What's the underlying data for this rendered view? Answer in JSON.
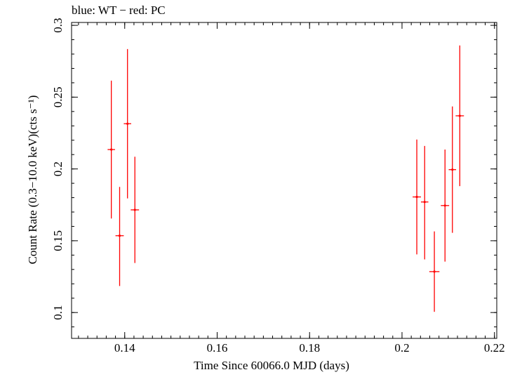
{
  "chart_data": {
    "type": "scatter",
    "title": "blue: WT − red: PC",
    "xlabel": "Time Since 60066.0 MJD (days)",
    "ylabel": "Count Rate (0.3−10.0 keV)(cts s⁻¹)",
    "xlim": [
      0.1285,
      0.2205
    ],
    "ylim": [
      0.082,
      0.302
    ],
    "x_ticks": [
      0.14,
      0.16,
      0.18,
      0.2,
      0.22
    ],
    "x_tick_labels": [
      "0.14",
      "0.16",
      "0.18",
      "0.2",
      "0.22"
    ],
    "y_ticks": [
      0.1,
      0.15,
      0.2,
      0.25,
      0.3
    ],
    "y_tick_labels": [
      "0.1",
      "0.15",
      "0.2",
      "0.25",
      "0.3"
    ],
    "grid": false,
    "series": [
      {
        "name": "PC",
        "color": "#ff0000",
        "points": [
          {
            "x": 0.1371,
            "y": 0.2135,
            "xerr": 0.0008,
            "yerr_low": 0.048,
            "yerr_high": 0.048
          },
          {
            "x": 0.1389,
            "y": 0.1535,
            "xerr": 0.0009,
            "yerr_low": 0.035,
            "yerr_high": 0.034
          },
          {
            "x": 0.1406,
            "y": 0.2315,
            "xerr": 0.0008,
            "yerr_low": 0.052,
            "yerr_high": 0.052
          },
          {
            "x": 0.1422,
            "y": 0.1715,
            "xerr": 0.0009,
            "yerr_low": 0.037,
            "yerr_high": 0.037
          },
          {
            "x": 0.2032,
            "y": 0.1805,
            "xerr": 0.0009,
            "yerr_low": 0.04,
            "yerr_high": 0.04
          },
          {
            "x": 0.2049,
            "y": 0.177,
            "xerr": 0.0008,
            "yerr_low": 0.04,
            "yerr_high": 0.039
          },
          {
            "x": 0.207,
            "y": 0.1285,
            "xerr": 0.0011,
            "yerr_low": 0.028,
            "yerr_high": 0.028
          },
          {
            "x": 0.2093,
            "y": 0.1745,
            "xerr": 0.0009,
            "yerr_low": 0.039,
            "yerr_high": 0.039
          },
          {
            "x": 0.2109,
            "y": 0.1995,
            "xerr": 0.0008,
            "yerr_low": 0.044,
            "yerr_high": 0.044
          },
          {
            "x": 0.2125,
            "y": 0.237,
            "xerr": 0.0009,
            "yerr_low": 0.049,
            "yerr_high": 0.049
          }
        ]
      }
    ]
  }
}
